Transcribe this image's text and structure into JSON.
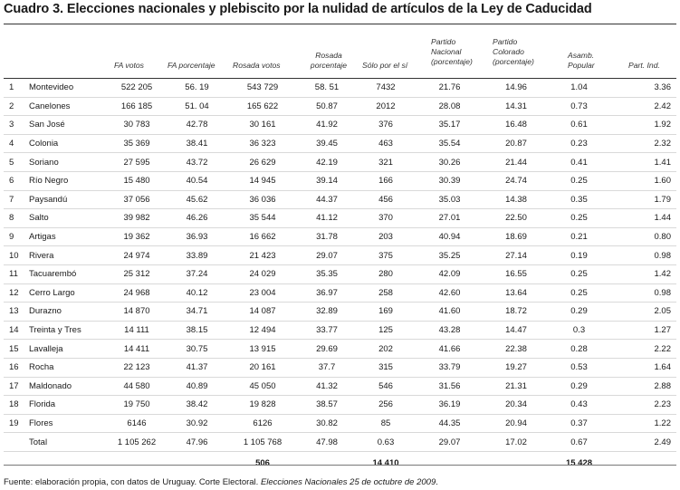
{
  "title": "Cuadro 3. Elecciones nacionales y plebiscito por la nulidad de artículos de la Ley de Caducidad",
  "headers": {
    "fa_votos": "FA votos",
    "fa_pct": "FA porcentaje",
    "rosada_votos": "Rosada votos",
    "rosada_pct": "Rosada porcentaje",
    "solo_si": "Sólo por el sí",
    "pn": "Partido Nacional (porcentaje)",
    "pc": "Partido Colorado (porcentaje)",
    "ap": "Asamb. Popular",
    "pi": "Part. Ind."
  },
  "rows": [
    {
      "n": "1",
      "dept": "Montevideo",
      "fa_votos": "522 205",
      "fa_pct": "56. 19",
      "rosada_votos": "543 729",
      "rosada_pct": "58. 51",
      "solo_si": "7432",
      "pn": "21.76",
      "pc": "14.96",
      "ap": "1.04",
      "pi": "3.36"
    },
    {
      "n": "2",
      "dept": "Canelones",
      "fa_votos": "166 185",
      "fa_pct": "51. 04",
      "rosada_votos": "165 622",
      "rosada_pct": "50.87",
      "solo_si": "2012",
      "pn": "28.08",
      "pc": "14.31",
      "ap": "0.73",
      "pi": "2.42"
    },
    {
      "n": "3",
      "dept": "San José",
      "fa_votos": "30 783",
      "fa_pct": "42.78",
      "rosada_votos": "30 161",
      "rosada_pct": "41.92",
      "solo_si": "376",
      "pn": "35.17",
      "pc": "16.48",
      "ap": "0.61",
      "pi": "1.92"
    },
    {
      "n": "4",
      "dept": "Colonia",
      "fa_votos": "35 369",
      "fa_pct": "38.41",
      "rosada_votos": "36 323",
      "rosada_pct": "39.45",
      "solo_si": "463",
      "pn": "35.54",
      "pc": "20.87",
      "ap": "0.23",
      "pi": "2.32"
    },
    {
      "n": "5",
      "dept": "Soriano",
      "fa_votos": "27 595",
      "fa_pct": "43.72",
      "rosada_votos": "26 629",
      "rosada_pct": "42.19",
      "solo_si": "321",
      "pn": "30.26",
      "pc": "21.44",
      "ap": "0.41",
      "pi": "1.41"
    },
    {
      "n": "6",
      "dept": "Río Negro",
      "fa_votos": "15 480",
      "fa_pct": "40.54",
      "rosada_votos": "14 945",
      "rosada_pct": "39.14",
      "solo_si": "166",
      "pn": "30.39",
      "pc": "24.74",
      "ap": "0.25",
      "pi": "1.60"
    },
    {
      "n": "7",
      "dept": "Paysandú",
      "fa_votos": "37 056",
      "fa_pct": "45.62",
      "rosada_votos": "36 036",
      "rosada_pct": "44.37",
      "solo_si": "456",
      "pn": "35.03",
      "pc": "14.38",
      "ap": "0.35",
      "pi": "1.79"
    },
    {
      "n": "8",
      "dept": "Salto",
      "fa_votos": "39 982",
      "fa_pct": "46.26",
      "rosada_votos": "35 544",
      "rosada_pct": "41.12",
      "solo_si": "370",
      "pn": "27.01",
      "pc": "22.50",
      "ap": "0.25",
      "pi": "1.44"
    },
    {
      "n": "9",
      "dept": "Artigas",
      "fa_votos": "19 362",
      "fa_pct": "36.93",
      "rosada_votos": "16 662",
      "rosada_pct": "31.78",
      "solo_si": "203",
      "pn": "40.94",
      "pc": "18.69",
      "ap": "0.21",
      "pi": "0.80"
    },
    {
      "n": "10",
      "dept": "Rivera",
      "fa_votos": "24 974",
      "fa_pct": "33.89",
      "rosada_votos": "21 423",
      "rosada_pct": "29.07",
      "solo_si": "375",
      "pn": "35.25",
      "pc": "27.14",
      "ap": "0.19",
      "pi": "0.98"
    },
    {
      "n": "11",
      "dept": "Tacuarembó",
      "fa_votos": "25 312",
      "fa_pct": "37.24",
      "rosada_votos": "24 029",
      "rosada_pct": "35.35",
      "solo_si": "280",
      "pn": "42.09",
      "pc": "16.55",
      "ap": "0.25",
      "pi": "1.42"
    },
    {
      "n": "12",
      "dept": "Cerro Largo",
      "fa_votos": "24 968",
      "fa_pct": "40.12",
      "rosada_votos": "23 004",
      "rosada_pct": "36.97",
      "solo_si": "258",
      "pn": "42.60",
      "pc": "13.64",
      "ap": "0.25",
      "pi": "0.98"
    },
    {
      "n": "13",
      "dept": "Durazno",
      "fa_votos": "14 870",
      "fa_pct": "34.71",
      "rosada_votos": "14 087",
      "rosada_pct": "32.89",
      "solo_si": "169",
      "pn": "41.60",
      "pc": "18.72",
      "ap": "0.29",
      "pi": "2.05"
    },
    {
      "n": "14",
      "dept": "Treinta y Tres",
      "fa_votos": "14 111",
      "fa_pct": "38.15",
      "rosada_votos": "12 494",
      "rosada_pct": "33.77",
      "solo_si": "125",
      "pn": "43.28",
      "pc": "14.47",
      "ap": "0.3",
      "pi": "1.27"
    },
    {
      "n": "15",
      "dept": "Lavalleja",
      "fa_votos": "14 411",
      "fa_pct": "30.75",
      "rosada_votos": "13 915",
      "rosada_pct": "29.69",
      "solo_si": "202",
      "pn": "41.66",
      "pc": "22.38",
      "ap": "0.28",
      "pi": "2.22"
    },
    {
      "n": "16",
      "dept": "Rocha",
      "fa_votos": "22 123",
      "fa_pct": "41.37",
      "rosada_votos": "20 161",
      "rosada_pct": "37.7",
      "solo_si": "315",
      "pn": "33.79",
      "pc": "19.27",
      "ap": "0.53",
      "pi": "1.64"
    },
    {
      "n": "17",
      "dept": "Maldonado",
      "fa_votos": "44 580",
      "fa_pct": "40.89",
      "rosada_votos": "45 050",
      "rosada_pct": "41.32",
      "solo_si": "546",
      "pn": "31.56",
      "pc": "21.31",
      "ap": "0.29",
      "pi": "2.88"
    },
    {
      "n": "18",
      "dept": "Florida",
      "fa_votos": "19 750",
      "fa_pct": "38.42",
      "rosada_votos": "19 828",
      "rosada_pct": "38.57",
      "solo_si": "256",
      "pn": "36.19",
      "pc": "20.34",
      "ap": "0.43",
      "pi": "2.23"
    },
    {
      "n": "19",
      "dept": "Flores",
      "fa_votos": "6146",
      "fa_pct": "30.92",
      "rosada_votos": "6126",
      "rosada_pct": "30.82",
      "solo_si": "85",
      "pn": "44.35",
      "pc": "20.94",
      "ap": "0.37",
      "pi": "1.22"
    }
  ],
  "total": {
    "label": "Total",
    "fa_votos": "1 105 262",
    "fa_pct": "47.96",
    "rosada_votos": "1 105 768",
    "rosada_pct": "47.98",
    "solo_si": "0.63",
    "pn": "29.07",
    "pc": "17.02",
    "ap": "0.67",
    "pi": "2.49"
  },
  "extra": {
    "rosada": "506",
    "solo_si": "14 410",
    "ap": "15 428"
  },
  "footer": {
    "source": "Fuente: elaboración propia, con datos de Uruguay. Corte Electoral. ",
    "source_italic": "Elecciones Nacionales 25 de octubre de 2009",
    "source_end": "."
  }
}
